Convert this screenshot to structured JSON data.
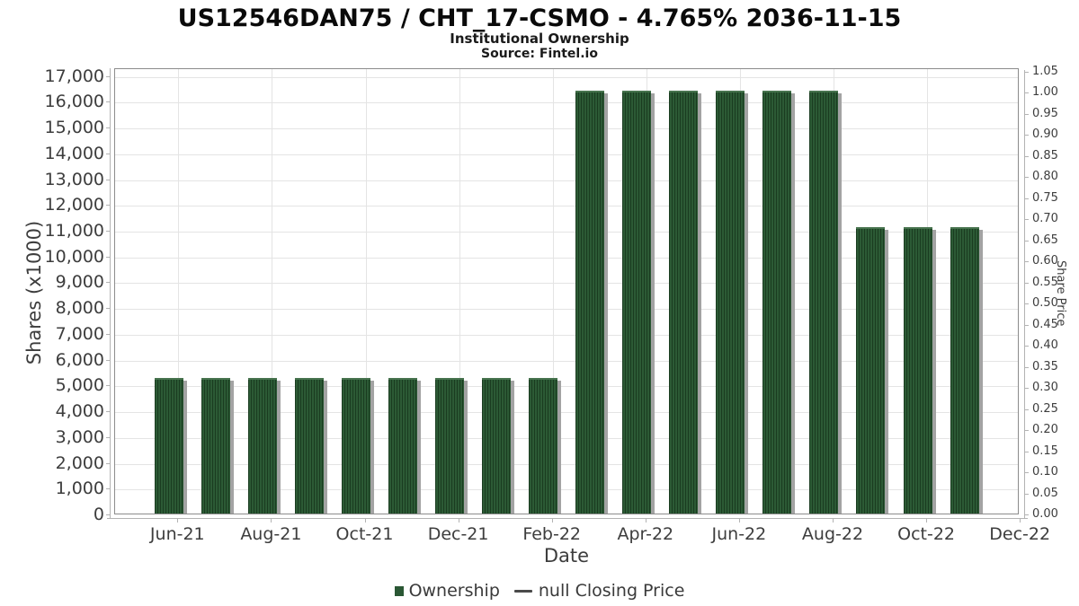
{
  "colors": {
    "bar_dark": "#1a3c20",
    "bar_light": "#2c5a35",
    "bar_cap": "#47734e",
    "bar_shadow": "#a3a3a3",
    "grid": "#e4e4e4",
    "frame": "#8c8c8c",
    "spine": "#b3b3b3",
    "text": "#3d3d3d"
  },
  "chart_data": {
    "type": "bar",
    "title": "US12546DAN75 / CHT_17-CSMO - 4.765% 2036-11-15",
    "subtitle": "Institutional Ownership",
    "source": "Source: Fintel.io",
    "xlabel": "Date",
    "ylabel_left": "Shares (x1000)",
    "ylabel_right": "Share Price",
    "categories": [
      "Jun-21",
      "Jul-21",
      "Aug-21",
      "Sep-21",
      "Oct-21",
      "Nov-21",
      "Dec-21",
      "Jan-22",
      "Feb-22",
      "Mar-22",
      "Apr-22",
      "May-22",
      "Jun-22",
      "Jul-22",
      "Aug-22",
      "Sep-22",
      "Oct-22",
      "Nov-22"
    ],
    "values": [
      5330,
      5330,
      5330,
      5330,
      5330,
      5330,
      5330,
      5330,
      5330,
      16470,
      16470,
      16470,
      16470,
      16470,
      16470,
      11190,
      11190,
      11190
    ],
    "series_name": "Ownership",
    "x_tick_labels": [
      "Jun-21",
      "Aug-21",
      "Oct-21",
      "Dec-21",
      "Feb-22",
      "Apr-22",
      "Jun-22",
      "Aug-22",
      "Oct-22",
      "Dec-22"
    ],
    "left_axis": {
      "min": 0,
      "max": 17000,
      "step": 1000
    },
    "right_axis": {
      "min": 0.0,
      "max": 1.05,
      "step": 0.05
    },
    "grid": true,
    "legend_position": "bottom",
    "legend": [
      {
        "label": "Ownership",
        "swatch": "square",
        "color": "#2a5734"
      },
      {
        "label": "null Closing Price",
        "swatch": "line",
        "color": "#4a4a4a"
      }
    ]
  }
}
